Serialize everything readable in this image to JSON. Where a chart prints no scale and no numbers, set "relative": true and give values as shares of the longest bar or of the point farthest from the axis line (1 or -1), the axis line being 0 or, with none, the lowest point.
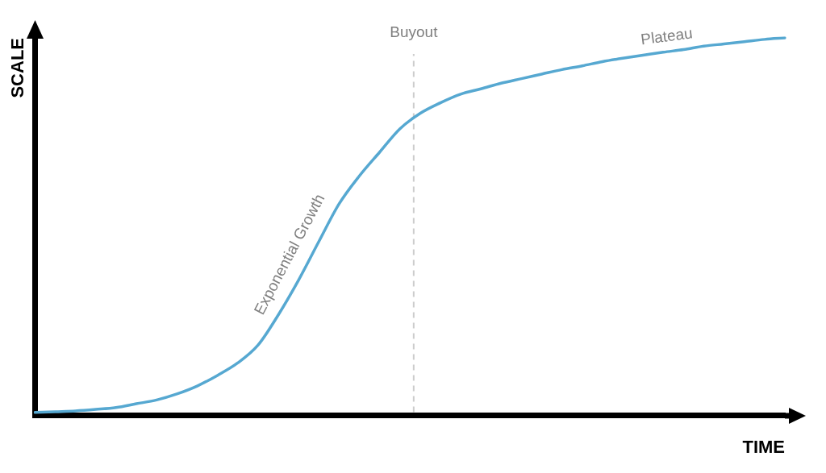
{
  "chart_data": {
    "type": "line",
    "xlabel": "TIME",
    "ylabel": "SCALE",
    "relative": true,
    "marker": "none",
    "color": "#56a8d1",
    "categories": [
      null,
      null,
      null,
      null,
      null,
      null,
      null,
      null,
      null,
      null,
      null,
      null,
      null,
      null,
      null,
      null,
      null,
      null,
      null,
      null,
      null,
      null,
      null,
      null,
      null,
      null,
      null,
      null,
      null,
      null,
      null,
      null,
      null,
      null,
      null,
      null,
      null,
      null
    ],
    "values": [
      0.008,
      0.01,
      0.012,
      0.016,
      0.021,
      0.031,
      0.041,
      0.057,
      0.078,
      0.106,
      0.139,
      0.186,
      0.266,
      0.358,
      0.46,
      0.56,
      0.634,
      0.697,
      0.759,
      0.8,
      0.828,
      0.851,
      0.865,
      0.88,
      0.892,
      0.904,
      0.916,
      0.926,
      0.937,
      0.946,
      0.954,
      0.962,
      0.969,
      0.978,
      0.984,
      0.99,
      0.996,
      1
    ],
    "annotations": [
      "Exponential Growth",
      "Buyout",
      "Plateau"
    ]
  }
}
